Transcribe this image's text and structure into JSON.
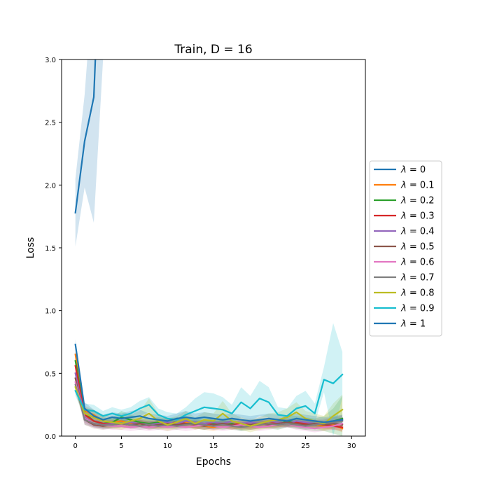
{
  "chart_data": {
    "type": "line",
    "title": "Train, D = 16",
    "xlabel": "Epochs",
    "ylabel": "Loss",
    "xlim": [
      -1.5,
      31.5
    ],
    "ylim": [
      0,
      3.0
    ],
    "xticks": [
      0,
      5,
      10,
      15,
      20,
      25,
      30
    ],
    "yticks": [
      0.0,
      0.5,
      1.0,
      1.5,
      2.0,
      2.5,
      3.0
    ],
    "xtick_labels": [
      "0",
      "5",
      "10",
      "15",
      "20",
      "25",
      "30"
    ],
    "ytick_labels": [
      "0.0",
      "0.5",
      "1.0",
      "1.5",
      "2.0",
      "2.5",
      "3.0"
    ],
    "grid": false,
    "legend": "outside-right",
    "legend_prefix": "λ",
    "legend_eq": " = ",
    "series": [
      {
        "name": "0",
        "color": "#1f77b4",
        "x": [
          0,
          1,
          2,
          3
        ],
        "y": [
          1.78,
          2.35,
          2.7,
          4.5
        ],
        "band": [
          0.27,
          0.37,
          1.0,
          1.5
        ]
      },
      {
        "name": "0.1",
        "color": "#ff7f0e",
        "x": [
          0,
          1,
          2,
          3,
          4,
          5,
          6,
          7,
          8,
          9,
          10,
          11,
          12,
          13,
          14,
          15,
          16,
          17,
          18,
          19,
          20,
          21,
          22,
          23,
          24,
          25,
          26,
          27,
          28,
          29
        ],
        "y": [
          0.65,
          0.2,
          0.17,
          0.12,
          0.11,
          0.12,
          0.1,
          0.11,
          0.1,
          0.09,
          0.1,
          0.1,
          0.11,
          0.09,
          0.08,
          0.07,
          0.09,
          0.08,
          0.09,
          0.08,
          0.09,
          0.1,
          0.1,
          0.11,
          0.1,
          0.11,
          0.09,
          0.08,
          0.09,
          0.06
        ],
        "band": [
          0.04,
          0.04,
          0.04,
          0.03,
          0.03,
          0.03,
          0.03,
          0.03,
          0.03,
          0.03,
          0.03,
          0.03,
          0.03,
          0.03,
          0.03,
          0.03,
          0.03,
          0.03,
          0.03,
          0.03,
          0.03,
          0.03,
          0.03,
          0.03,
          0.03,
          0.03,
          0.03,
          0.03,
          0.03,
          0.03
        ]
      },
      {
        "name": "0.2",
        "color": "#2ca02c",
        "x": [
          0,
          1,
          2,
          3,
          4,
          5,
          6,
          7,
          8,
          9,
          10,
          11,
          12,
          13,
          14,
          15,
          16,
          17,
          18,
          19,
          20,
          21,
          22,
          23,
          24,
          25,
          26,
          27,
          28,
          29
        ],
        "y": [
          0.6,
          0.18,
          0.12,
          0.1,
          0.11,
          0.15,
          0.13,
          0.11,
          0.1,
          0.11,
          0.1,
          0.11,
          0.1,
          0.1,
          0.09,
          0.1,
          0.09,
          0.1,
          0.08,
          0.09,
          0.1,
          0.1,
          0.09,
          0.12,
          0.11,
          0.1,
          0.09,
          0.1,
          0.12,
          0.14
        ],
        "band": [
          0.05,
          0.04,
          0.04,
          0.04,
          0.04,
          0.05,
          0.04,
          0.04,
          0.04,
          0.04,
          0.04,
          0.04,
          0.04,
          0.04,
          0.04,
          0.04,
          0.04,
          0.04,
          0.04,
          0.04,
          0.04,
          0.04,
          0.04,
          0.05,
          0.05,
          0.05,
          0.05,
          0.06,
          0.1,
          0.18
        ]
      },
      {
        "name": "0.3",
        "color": "#d62728",
        "x": [
          0,
          1,
          2,
          3,
          4,
          5,
          6,
          7,
          8,
          9,
          10,
          11,
          12,
          13,
          14,
          15,
          16,
          17,
          18,
          19,
          20,
          21,
          22,
          23,
          24,
          25,
          26,
          27,
          28,
          29
        ],
        "y": [
          0.56,
          0.17,
          0.12,
          0.1,
          0.1,
          0.1,
          0.09,
          0.1,
          0.09,
          0.1,
          0.1,
          0.11,
          0.1,
          0.09,
          0.1,
          0.09,
          0.1,
          0.09,
          0.1,
          0.09,
          0.1,
          0.1,
          0.11,
          0.1,
          0.11,
          0.1,
          0.1,
          0.09,
          0.08,
          0.07
        ],
        "band": [
          0.05,
          0.04,
          0.03,
          0.03,
          0.03,
          0.03,
          0.03,
          0.03,
          0.03,
          0.03,
          0.03,
          0.03,
          0.03,
          0.03,
          0.03,
          0.03,
          0.03,
          0.03,
          0.03,
          0.03,
          0.03,
          0.03,
          0.03,
          0.03,
          0.03,
          0.03,
          0.03,
          0.03,
          0.03,
          0.03
        ]
      },
      {
        "name": "0.4",
        "color": "#9467bd",
        "x": [
          0,
          1,
          2,
          3,
          4,
          5,
          6,
          7,
          8,
          9,
          10,
          11,
          12,
          13,
          14,
          15,
          16,
          17,
          18,
          19,
          20,
          21,
          22,
          23,
          24,
          25,
          26,
          27,
          28,
          29
        ],
        "y": [
          0.5,
          0.15,
          0.1,
          0.09,
          0.1,
          0.1,
          0.11,
          0.1,
          0.09,
          0.1,
          0.11,
          0.1,
          0.12,
          0.11,
          0.1,
          0.11,
          0.1,
          0.12,
          0.1,
          0.11,
          0.1,
          0.12,
          0.11,
          0.1,
          0.12,
          0.11,
          0.1,
          0.11,
          0.12,
          0.13
        ],
        "band": [
          0.05,
          0.04,
          0.03,
          0.03,
          0.03,
          0.03,
          0.03,
          0.03,
          0.03,
          0.03,
          0.03,
          0.03,
          0.03,
          0.03,
          0.03,
          0.03,
          0.03,
          0.03,
          0.03,
          0.03,
          0.03,
          0.03,
          0.03,
          0.03,
          0.03,
          0.03,
          0.03,
          0.03,
          0.03,
          0.03
        ]
      },
      {
        "name": "0.5",
        "color": "#8c564b",
        "x": [
          0,
          1,
          2,
          3,
          4,
          5,
          6,
          7,
          8,
          9,
          10,
          11,
          12,
          13,
          14,
          15,
          16,
          17,
          18,
          19,
          20,
          21,
          22,
          23,
          24,
          25,
          26,
          27,
          28,
          29
        ],
        "y": [
          0.46,
          0.13,
          0.09,
          0.08,
          0.09,
          0.1,
          0.09,
          0.1,
          0.08,
          0.09,
          0.1,
          0.09,
          0.1,
          0.09,
          0.08,
          0.09,
          0.1,
          0.09,
          0.08,
          0.09,
          0.1,
          0.09,
          0.1,
          0.11,
          0.1,
          0.09,
          0.1,
          0.09,
          0.1,
          0.09
        ],
        "band": [
          0.05,
          0.04,
          0.03,
          0.03,
          0.03,
          0.03,
          0.03,
          0.03,
          0.03,
          0.03,
          0.03,
          0.03,
          0.03,
          0.03,
          0.03,
          0.03,
          0.03,
          0.03,
          0.03,
          0.03,
          0.03,
          0.03,
          0.03,
          0.03,
          0.03,
          0.03,
          0.03,
          0.03,
          0.03,
          0.03
        ]
      },
      {
        "name": "0.6",
        "color": "#e377c2",
        "x": [
          0,
          1,
          2,
          3,
          4,
          5,
          6,
          7,
          8,
          9,
          10,
          11,
          12,
          13,
          14,
          15,
          16,
          17,
          18,
          19,
          20,
          21,
          22,
          23,
          24,
          25,
          26,
          27,
          28,
          29
        ],
        "y": [
          0.43,
          0.14,
          0.1,
          0.09,
          0.08,
          0.08,
          0.07,
          0.08,
          0.07,
          0.08,
          0.07,
          0.08,
          0.07,
          0.08,
          0.09,
          0.08,
          0.07,
          0.08,
          0.09,
          0.08,
          0.07,
          0.08,
          0.09,
          0.1,
          0.08,
          0.07,
          0.06,
          0.07,
          0.08,
          0.1
        ],
        "band": [
          0.05,
          0.04,
          0.03,
          0.03,
          0.03,
          0.03,
          0.03,
          0.03,
          0.03,
          0.03,
          0.03,
          0.03,
          0.03,
          0.03,
          0.03,
          0.03,
          0.03,
          0.03,
          0.03,
          0.03,
          0.03,
          0.03,
          0.03,
          0.03,
          0.03,
          0.03,
          0.03,
          0.03,
          0.03,
          0.03
        ]
      },
      {
        "name": "0.7",
        "color": "#7f7f7f",
        "x": [
          0,
          1,
          2,
          3,
          4,
          5,
          6,
          7,
          8,
          9,
          10,
          11,
          12,
          13,
          14,
          15,
          16,
          17,
          18,
          19,
          20,
          21,
          22,
          23,
          24,
          25,
          26,
          27,
          28,
          29
        ],
        "y": [
          0.41,
          0.13,
          0.1,
          0.09,
          0.09,
          0.1,
          0.09,
          0.08,
          0.09,
          0.08,
          0.09,
          0.08,
          0.09,
          0.1,
          0.09,
          0.08,
          0.09,
          0.08,
          0.07,
          0.08,
          0.09,
          0.1,
          0.09,
          0.1,
          0.09,
          0.08,
          0.09,
          0.1,
          0.11,
          0.12
        ],
        "band": [
          0.05,
          0.04,
          0.03,
          0.03,
          0.03,
          0.03,
          0.03,
          0.03,
          0.03,
          0.03,
          0.03,
          0.03,
          0.03,
          0.03,
          0.03,
          0.03,
          0.03,
          0.03,
          0.03,
          0.03,
          0.03,
          0.03,
          0.03,
          0.03,
          0.03,
          0.03,
          0.03,
          0.03,
          0.04,
          0.05
        ]
      },
      {
        "name": "0.8",
        "color": "#bcbd22",
        "x": [
          0,
          1,
          2,
          3,
          4,
          5,
          6,
          7,
          8,
          9,
          10,
          11,
          12,
          13,
          14,
          15,
          16,
          17,
          18,
          19,
          20,
          21,
          22,
          23,
          24,
          25,
          26,
          27,
          28,
          29
        ],
        "y": [
          0.39,
          0.18,
          0.15,
          0.12,
          0.11,
          0.1,
          0.12,
          0.14,
          0.18,
          0.12,
          0.09,
          0.11,
          0.14,
          0.1,
          0.13,
          0.12,
          0.18,
          0.12,
          0.1,
          0.08,
          0.1,
          0.12,
          0.13,
          0.15,
          0.19,
          0.14,
          0.12,
          0.1,
          0.16,
          0.21
        ],
        "band": [
          0.05,
          0.05,
          0.05,
          0.05,
          0.05,
          0.05,
          0.05,
          0.06,
          0.12,
          0.06,
          0.05,
          0.05,
          0.06,
          0.05,
          0.06,
          0.06,
          0.1,
          0.06,
          0.05,
          0.05,
          0.05,
          0.06,
          0.06,
          0.07,
          0.08,
          0.06,
          0.06,
          0.06,
          0.1,
          0.12
        ]
      },
      {
        "name": "0.9",
        "color": "#17becf",
        "x": [
          0,
          1,
          2,
          3,
          4,
          5,
          6,
          7,
          8,
          9,
          10,
          11,
          12,
          13,
          14,
          15,
          16,
          17,
          18,
          19,
          20,
          21,
          22,
          23,
          24,
          25,
          26,
          27,
          28,
          29
        ],
        "y": [
          0.36,
          0.21,
          0.2,
          0.16,
          0.18,
          0.16,
          0.18,
          0.22,
          0.25,
          0.17,
          0.14,
          0.13,
          0.17,
          0.2,
          0.23,
          0.22,
          0.21,
          0.18,
          0.27,
          0.22,
          0.3,
          0.27,
          0.17,
          0.16,
          0.22,
          0.24,
          0.18,
          0.45,
          0.42,
          0.49
        ],
        "band": [
          0.04,
          0.05,
          0.05,
          0.04,
          0.05,
          0.05,
          0.05,
          0.06,
          0.06,
          0.05,
          0.05,
          0.05,
          0.06,
          0.1,
          0.12,
          0.12,
          0.1,
          0.07,
          0.12,
          0.1,
          0.14,
          0.12,
          0.06,
          0.06,
          0.1,
          0.12,
          0.08,
          0.1,
          0.48,
          0.18
        ]
      },
      {
        "name": "1",
        "color": "#1f77b4",
        "x": [
          0,
          1,
          2,
          3,
          4,
          5,
          6,
          7,
          8,
          9,
          10,
          11,
          12,
          13,
          14,
          15,
          16,
          17,
          18,
          19,
          20,
          21,
          22,
          23,
          24,
          25,
          26,
          27,
          28,
          29
        ],
        "y": [
          0.73,
          0.22,
          0.16,
          0.13,
          0.15,
          0.14,
          0.15,
          0.16,
          0.14,
          0.13,
          0.12,
          0.14,
          0.15,
          0.14,
          0.15,
          0.14,
          0.13,
          0.14,
          0.13,
          0.12,
          0.13,
          0.14,
          0.13,
          0.12,
          0.14,
          0.13,
          0.12,
          0.11,
          0.12,
          0.13
        ],
        "band": [
          0.04,
          0.05,
          0.05,
          0.04,
          0.04,
          0.04,
          0.05,
          0.05,
          0.04,
          0.04,
          0.04,
          0.04,
          0.05,
          0.04,
          0.04,
          0.04,
          0.04,
          0.04,
          0.04,
          0.04,
          0.04,
          0.04,
          0.04,
          0.04,
          0.04,
          0.04,
          0.04,
          0.04,
          0.04,
          0.04
        ]
      }
    ]
  }
}
